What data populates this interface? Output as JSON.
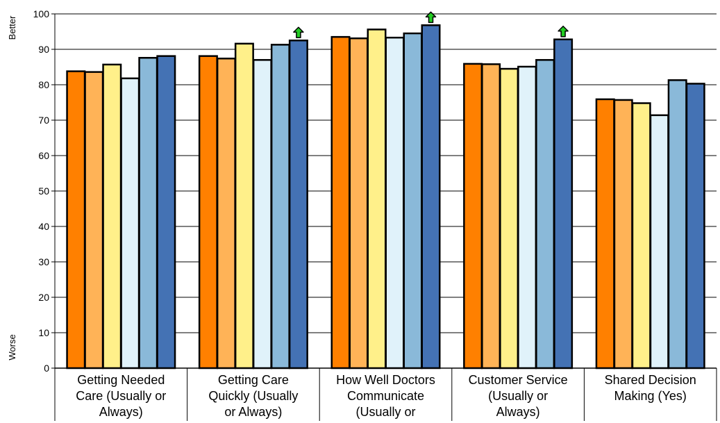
{
  "chart_data": {
    "type": "bar",
    "categories": [
      [
        "Getting Needed",
        "Care (Usually or",
        "Always)"
      ],
      [
        "Getting Care",
        "Quickly (Usually",
        "or Always)"
      ],
      [
        "How Well Doctors",
        "Communicate",
        "(Usually or"
      ],
      [
        "Customer Service",
        "(Usually or",
        "Always)"
      ],
      [
        "Shared Decision",
        "Making (Yes)"
      ]
    ],
    "series": [
      {
        "color": "#ff8000",
        "values": [
          83.8,
          88.1,
          93.5,
          85.9,
          75.9
        ]
      },
      {
        "color": "#ffb357",
        "values": [
          83.6,
          87.4,
          93.1,
          85.8,
          75.7
        ]
      },
      {
        "color": "#fff08a",
        "values": [
          85.7,
          91.6,
          95.6,
          84.5,
          74.8
        ]
      },
      {
        "color": "#e0f2fa",
        "values": [
          81.8,
          87.0,
          93.3,
          85.1,
          71.4
        ]
      },
      {
        "color": "#8ab9d9",
        "values": [
          87.6,
          91.3,
          94.5,
          87.0,
          81.3
        ]
      },
      {
        "color": "#4472b4",
        "values": [
          88.1,
          92.5,
          96.8,
          92.8,
          80.3
        ]
      }
    ],
    "improvement_arrows": [
      {
        "category_index": 1,
        "series_index": 5
      },
      {
        "category_index": 2,
        "series_index": 5
      },
      {
        "category_index": 3,
        "series_index": 5
      }
    ],
    "arrow_color": "#22cc22",
    "ylim": [
      0,
      100
    ],
    "yticks": [
      0,
      10,
      20,
      30,
      40,
      50,
      60,
      70,
      80,
      90,
      100
    ],
    "ylabel_top": "Better",
    "ylabel_bottom": "Worse",
    "grid": true
  }
}
